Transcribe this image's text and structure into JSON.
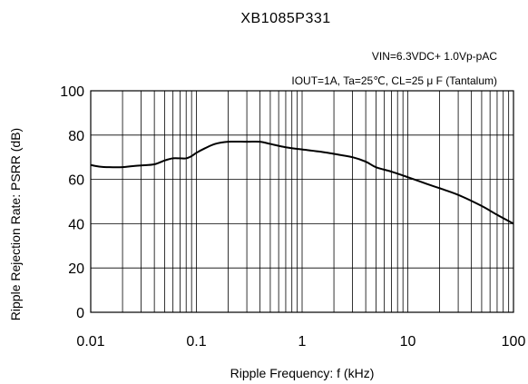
{
  "chart_data": {
    "type": "line",
    "title": "XB1085P331",
    "conditions": [
      "VIN=6.3VDC+ 1.0Vp-pAC",
      "IOUT=1A, Ta=25℃, CL=25 μ F (Tantalum)"
    ],
    "xlabel": "Ripple Frequency: f (kHz)",
    "ylabel": "Ripple Rejection Rate: PSRR (dB)",
    "xscale": "log",
    "xlim": [
      0.01,
      100
    ],
    "ylim": [
      0,
      100
    ],
    "xticks": [
      0.01,
      0.1,
      1,
      10,
      100
    ],
    "xtick_labels": [
      "0.01",
      "0.1",
      "1",
      "10",
      "100"
    ],
    "yticks": [
      0,
      20,
      40,
      60,
      80,
      100
    ],
    "ytick_labels": [
      "0",
      "20",
      "40",
      "60",
      "80",
      "100"
    ],
    "grid": true,
    "series": [
      {
        "x": [
          0.01,
          0.012,
          0.015,
          0.02,
          0.025,
          0.03,
          0.04,
          0.05,
          0.06,
          0.07,
          0.08,
          0.09,
          0.1,
          0.12,
          0.15,
          0.2,
          0.3,
          0.4,
          0.5,
          0.7,
          1,
          1.5,
          2,
          3,
          4,
          5,
          7,
          10,
          15,
          20,
          30,
          50,
          70,
          100
        ],
        "y": [
          66.5,
          65.8,
          65.5,
          65.5,
          66,
          66.3,
          66.8,
          68.5,
          69.5,
          69.5,
          69.5,
          70.5,
          72,
          74,
          76,
          77,
          77,
          77,
          76,
          74.5,
          73.5,
          72.5,
          71.5,
          70,
          68,
          65.5,
          63.5,
          61,
          58,
          56,
          53,
          48,
          44,
          40
        ]
      }
    ]
  }
}
